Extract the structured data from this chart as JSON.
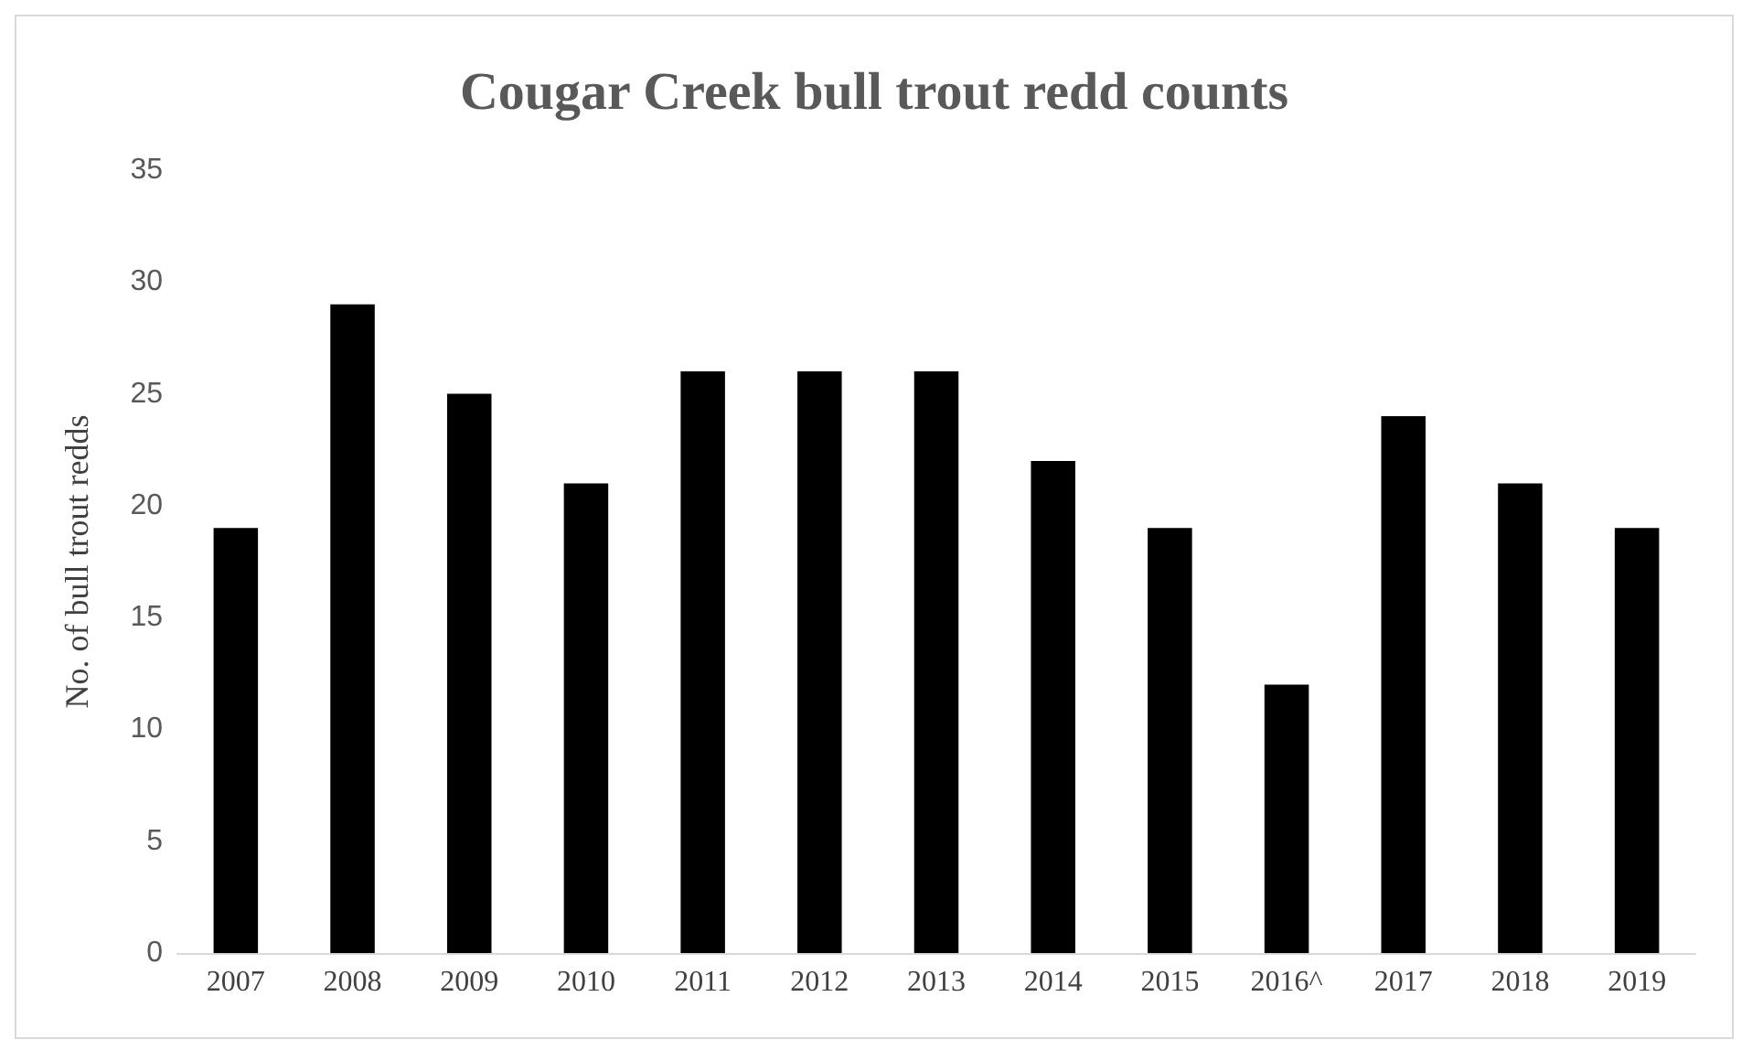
{
  "chart_data": {
    "type": "bar",
    "title": "Cougar Creek bull trout redd counts",
    "ylabel": "No. of bull trout redds",
    "categories": [
      "2007",
      "2008",
      "2009",
      "2010",
      "2011",
      "2012",
      "2013",
      "2014",
      "2015",
      "2016^",
      "2017",
      "2018",
      "2019"
    ],
    "values": [
      19,
      29,
      25,
      21,
      26,
      26,
      26,
      22,
      19,
      12,
      24,
      21,
      19
    ],
    "color": "#000000",
    "ylim": [
      0,
      35
    ],
    "yticks": [
      0,
      5,
      10,
      15,
      20,
      25,
      30,
      35
    ],
    "grid": false
  }
}
